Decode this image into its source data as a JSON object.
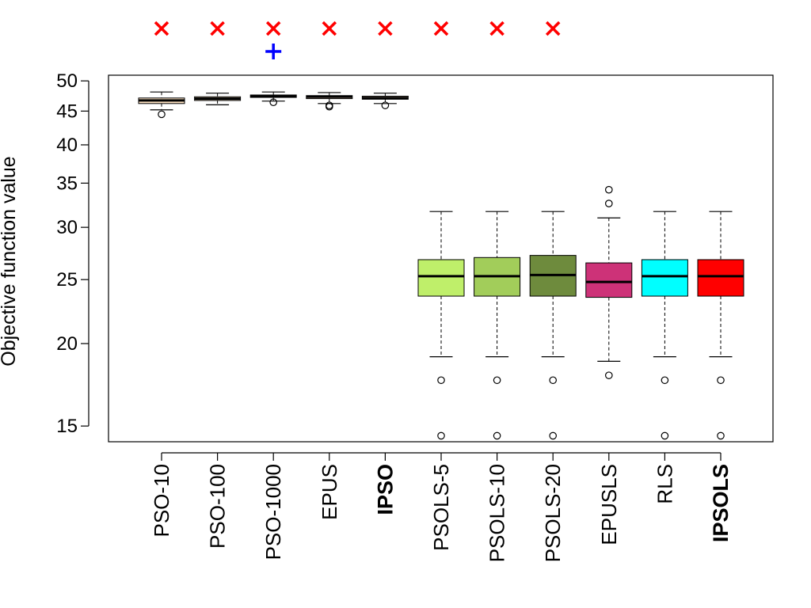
{
  "chart_data": {
    "type": "boxplot",
    "title": "",
    "xlabel": "",
    "ylabel": "Objective function value",
    "y_scale": "log",
    "ylim": [
      14.2,
      51
    ],
    "y_ticks": [
      15,
      20,
      25,
      30,
      35,
      40,
      45,
      50
    ],
    "grid": false,
    "legend": "none",
    "categories": [
      "PSO-10",
      "PSO-100",
      "PSO-1000",
      "EPUS",
      "IPSO",
      "PSOLS-5",
      "PSOLS-10",
      "PSOLS-20",
      "EPUSLS",
      "RLS",
      "IPSOLS"
    ],
    "bold_categories": [
      "IPSO",
      "IPSOLS"
    ],
    "boxes": [
      {
        "category": "PSO-10",
        "color": "#FFE4C4",
        "whisker_low": 45.2,
        "q1": 46.2,
        "median": 46.7,
        "q3": 47.1,
        "whisker_high": 48.1,
        "outliers": [
          44.5
        ]
      },
      {
        "category": "PSO-100",
        "color": "#FFE4C4",
        "whisker_low": 46.0,
        "q1": 46.7,
        "median": 47.0,
        "q3": 47.3,
        "whisker_high": 47.9,
        "outliers": []
      },
      {
        "category": "PSO-1000",
        "color": "#FFE4C4",
        "whisker_low": 46.6,
        "q1": 47.2,
        "median": 47.4,
        "q3": 47.6,
        "whisker_high": 48.1,
        "outliers": [
          46.4
        ]
      },
      {
        "category": "EPUS",
        "color": "#FFE4C4",
        "whisker_low": 46.2,
        "q1": 47.0,
        "median": 47.3,
        "q3": 47.5,
        "whisker_high": 48.0,
        "outliers": [
          45.9,
          45.7
        ]
      },
      {
        "category": "IPSO",
        "color": "#FFE4C4",
        "whisker_low": 46.2,
        "q1": 46.9,
        "median": 47.1,
        "q3": 47.4,
        "whisker_high": 47.9,
        "outliers": [
          45.9
        ]
      },
      {
        "category": "PSOLS-5",
        "color": "#BFEF6A",
        "whisker_low": 19.1,
        "q1": 23.6,
        "median": 25.3,
        "q3": 26.8,
        "whisker_high": 31.7,
        "outliers": [
          17.6,
          14.5
        ]
      },
      {
        "category": "PSOLS-10",
        "color": "#A2CD5A",
        "whisker_low": 19.1,
        "q1": 23.6,
        "median": 25.3,
        "q3": 27.0,
        "whisker_high": 31.7,
        "outliers": [
          17.6,
          14.5
        ]
      },
      {
        "category": "PSOLS-20",
        "color": "#6E8B3D",
        "whisker_low": 19.1,
        "q1": 23.6,
        "median": 25.4,
        "q3": 27.2,
        "whisker_high": 31.7,
        "outliers": [
          17.6,
          14.5
        ]
      },
      {
        "category": "EPUSLS",
        "color": "#CD3278",
        "whisker_low": 18.8,
        "q1": 23.5,
        "median": 24.8,
        "q3": 26.5,
        "whisker_high": 31.0,
        "outliers": [
          17.9,
          32.6,
          34.2
        ]
      },
      {
        "category": "RLS",
        "color": "#00FFFF",
        "whisker_low": 19.1,
        "q1": 23.6,
        "median": 25.3,
        "q3": 26.8,
        "whisker_high": 31.7,
        "outliers": [
          17.6,
          14.5
        ]
      },
      {
        "category": "IPSOLS",
        "color": "#FF0000",
        "whisker_low": 19.1,
        "q1": 23.6,
        "median": 25.3,
        "q3": 26.8,
        "whisker_high": 31.7,
        "outliers": [
          17.6,
          14.5
        ]
      }
    ],
    "markers_above": [
      {
        "category": "PSO-10",
        "symbol": "×",
        "color": "#FF0000",
        "row": 0
      },
      {
        "category": "PSO-100",
        "symbol": "×",
        "color": "#FF0000",
        "row": 0
      },
      {
        "category": "PSO-1000",
        "symbol": "×",
        "color": "#FF0000",
        "row": 0
      },
      {
        "category": "PSO-1000",
        "symbol": "+",
        "color": "#0000FF",
        "row": 1
      },
      {
        "category": "EPUS",
        "symbol": "×",
        "color": "#FF0000",
        "row": 0
      },
      {
        "category": "IPSO",
        "symbol": "×",
        "color": "#FF0000",
        "row": 0
      },
      {
        "category": "PSOLS-5",
        "symbol": "×",
        "color": "#FF0000",
        "row": 0
      },
      {
        "category": "PSOLS-10",
        "symbol": "×",
        "color": "#FF0000",
        "row": 0
      },
      {
        "category": "PSOLS-20",
        "symbol": "×",
        "color": "#FF0000",
        "row": 0
      }
    ]
  }
}
